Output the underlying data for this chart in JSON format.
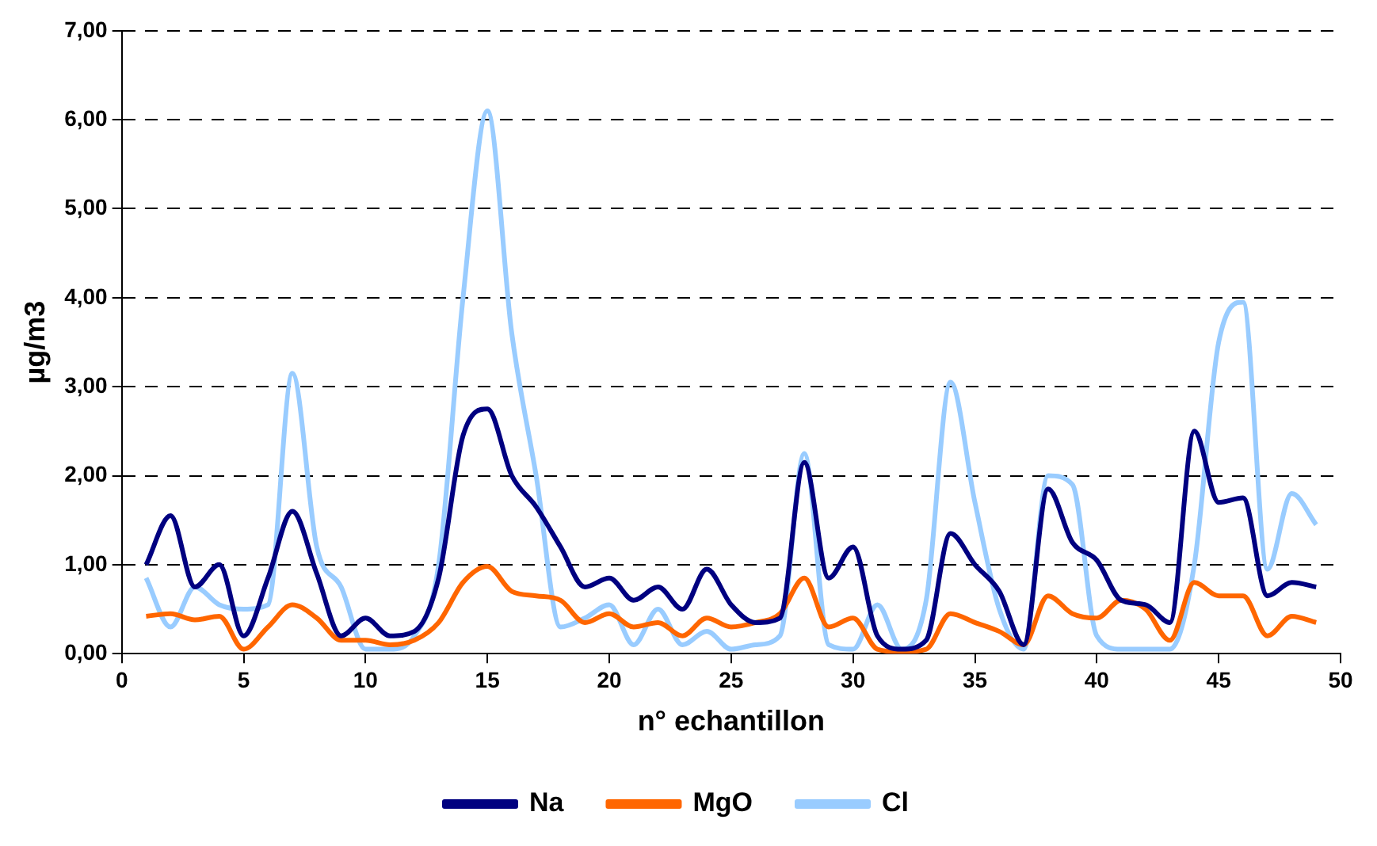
{
  "chart_data": {
    "type": "line",
    "xlabel": "n° echantillon",
    "ylabel": "µg/m3",
    "x": [
      1,
      2,
      3,
      4,
      5,
      6,
      7,
      8,
      9,
      10,
      11,
      12,
      13,
      14,
      15,
      16,
      17,
      18,
      19,
      20,
      21,
      22,
      23,
      24,
      25,
      26,
      27,
      28,
      29,
      30,
      31,
      32,
      33,
      34,
      35,
      36,
      37,
      38,
      39,
      40,
      41,
      42,
      43,
      44,
      45,
      46,
      47,
      48,
      49
    ],
    "series": [
      {
        "name": "Na",
        "color": "#000080",
        "values": [
          1.0,
          1.55,
          0.75,
          1.0,
          0.2,
          0.85,
          1.6,
          0.9,
          0.2,
          0.4,
          0.2,
          0.25,
          0.85,
          2.45,
          2.75,
          2.0,
          1.65,
          1.2,
          0.75,
          0.85,
          0.6,
          0.75,
          0.5,
          0.95,
          0.55,
          0.35,
          0.4,
          2.15,
          0.85,
          1.2,
          0.2,
          0.05,
          0.15,
          1.35,
          1.0,
          0.7,
          0.1,
          1.85,
          1.25,
          1.05,
          0.6,
          0.55,
          0.35,
          2.5,
          1.7,
          1.75,
          0.65,
          0.8,
          0.75
        ]
      },
      {
        "name": "MgO",
        "color": "#ff6600",
        "values": [
          0.42,
          0.45,
          0.38,
          0.42,
          0.05,
          0.3,
          0.55,
          0.4,
          0.15,
          0.15,
          0.1,
          0.15,
          0.35,
          0.8,
          0.98,
          0.7,
          0.65,
          0.6,
          0.35,
          0.45,
          0.3,
          0.35,
          0.2,
          0.4,
          0.3,
          0.35,
          0.45,
          0.85,
          0.3,
          0.4,
          0.05,
          0.02,
          0.05,
          0.45,
          0.35,
          0.25,
          0.1,
          0.65,
          0.45,
          0.4,
          0.6,
          0.5,
          0.15,
          0.8,
          0.65,
          0.65,
          0.2,
          0.42,
          0.35
        ]
      },
      {
        "name": "Cl",
        "color": "#99ccff",
        "values": [
          0.85,
          0.3,
          0.75,
          0.55,
          0.5,
          0.55,
          3.15,
          1.2,
          0.75,
          0.05,
          0.05,
          0.2,
          1.0,
          4.0,
          6.1,
          3.6,
          2.0,
          0.3,
          0.4,
          0.55,
          0.1,
          0.5,
          0.1,
          0.25,
          0.05,
          0.1,
          0.2,
          2.25,
          0.1,
          0.05,
          0.55,
          0.05,
          0.6,
          3.05,
          1.7,
          0.5,
          0.05,
          2.0,
          1.9,
          0.2,
          0.05,
          0.05,
          0.05,
          1.0,
          3.5,
          3.95,
          0.95,
          1.8,
          1.45
        ]
      }
    ],
    "xlim": [
      0,
      50
    ],
    "xticks": [
      0,
      5,
      10,
      15,
      20,
      25,
      30,
      35,
      40,
      45,
      50
    ],
    "ylim": [
      0,
      7
    ],
    "yticks": [
      {
        "value": 0,
        "label": "0,00"
      },
      {
        "value": 1,
        "label": "1,00"
      },
      {
        "value": 2,
        "label": "2,00"
      },
      {
        "value": 3,
        "label": "3,00"
      },
      {
        "value": 4,
        "label": "4,00"
      },
      {
        "value": 5,
        "label": "5,00"
      },
      {
        "value": 6,
        "label": "6,00"
      },
      {
        "value": 7,
        "label": "7,00"
      }
    ],
    "grid": "y",
    "legend": "bottom",
    "marker": "none",
    "line_style": "solid"
  }
}
